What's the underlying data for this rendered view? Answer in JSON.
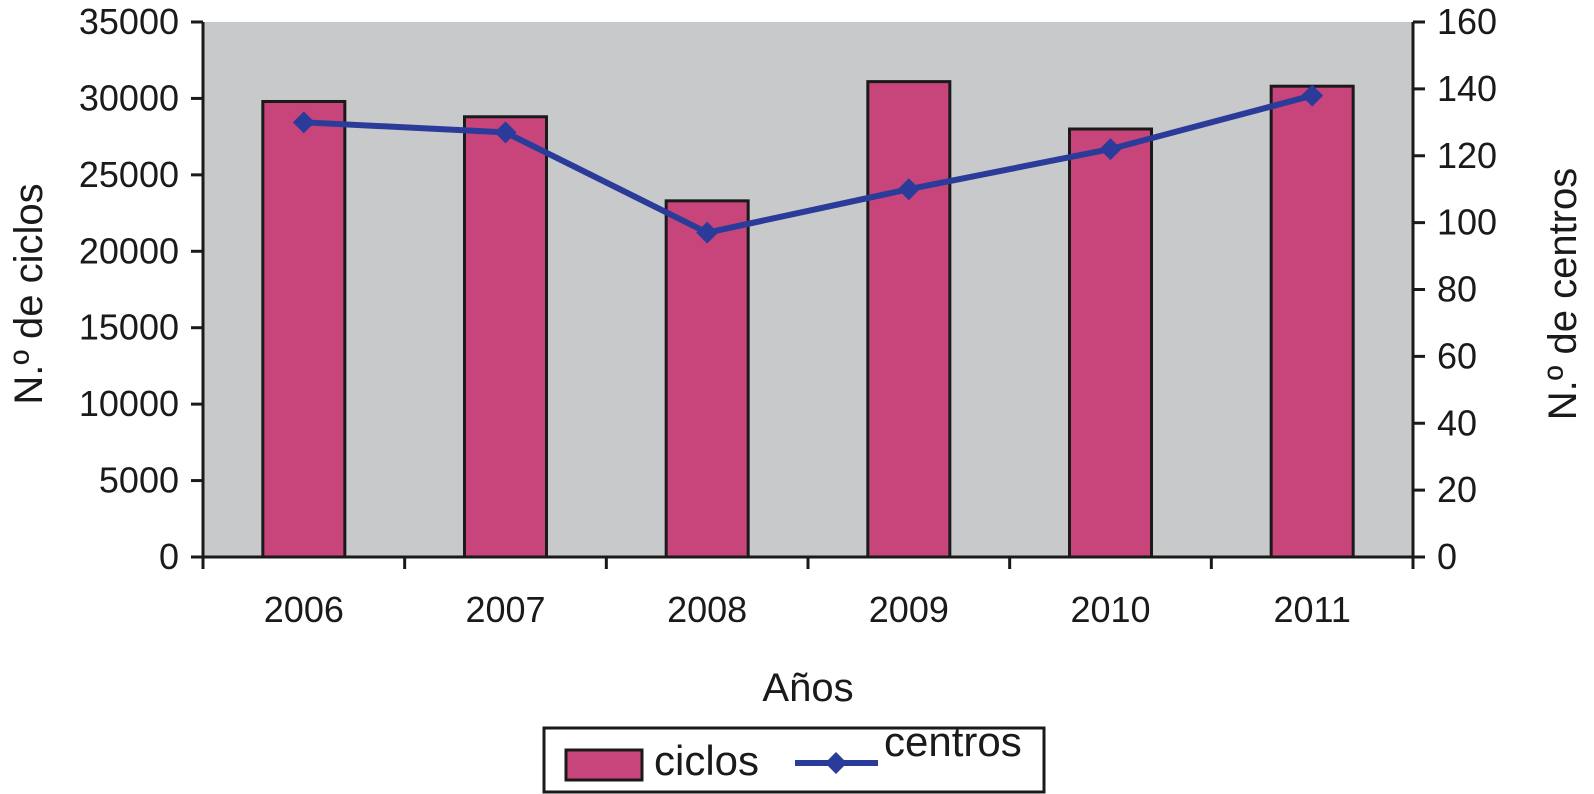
{
  "chart_data": {
    "type": "bar",
    "categories": [
      "2006",
      "2007",
      "2008",
      "2009",
      "2010",
      "2011"
    ],
    "xlabel": "Años",
    "ylabel": "N.º de ciclos",
    "y2label": "N.º de centros",
    "ylim": [
      0,
      35000
    ],
    "y2lim": [
      0,
      160
    ],
    "yticks": [
      "0",
      "5000",
      "10000",
      "15000",
      "20000",
      "25000",
      "30000",
      "35000"
    ],
    "y2ticks": [
      "0",
      "20",
      "40",
      "60",
      "80",
      "100",
      "120",
      "140",
      "160"
    ],
    "grid": false,
    "legend_position": "bottom-center",
    "series": [
      {
        "name": "ciclos",
        "type": "bar",
        "axis": "left",
        "color": "#c8457b",
        "values": [
          29800,
          28800,
          23300,
          31100,
          28000,
          30800
        ]
      },
      {
        "name": "centros",
        "type": "line",
        "axis": "right",
        "color": "#2b3b9a",
        "marker": "diamond",
        "values": [
          130,
          127,
          97,
          110,
          122,
          138
        ]
      }
    ],
    "plot_background": "#c8c9cb"
  }
}
